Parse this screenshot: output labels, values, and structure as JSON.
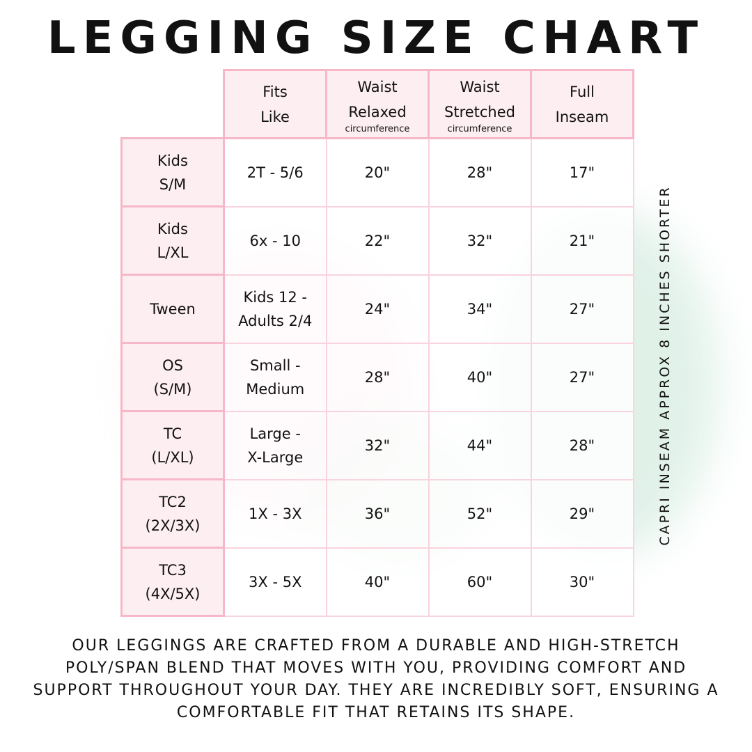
{
  "title": "LEGGING SIZE CHART",
  "headers": [
    {
      "lines": [
        "Fits",
        "Like"
      ],
      "sub": ""
    },
    {
      "lines": [
        "Waist",
        "Relaxed"
      ],
      "sub": "circumference"
    },
    {
      "lines": [
        "Waist",
        "Stretched"
      ],
      "sub": "circumference"
    },
    {
      "lines": [
        "Full",
        "Inseam"
      ],
      "sub": ""
    }
  ],
  "rows": [
    {
      "size": [
        "Kids",
        "S/M"
      ],
      "fits": [
        "2T - 5/6"
      ],
      "relaxed": "20\"",
      "stretched": "28\"",
      "inseam": "17\""
    },
    {
      "size": [
        "Kids",
        "L/XL"
      ],
      "fits": [
        "6x - 10"
      ],
      "relaxed": "22\"",
      "stretched": "32\"",
      "inseam": "21\""
    },
    {
      "size": [
        "Tween"
      ],
      "fits": [
        "Kids 12 -",
        "Adults 2/4"
      ],
      "relaxed": "24\"",
      "stretched": "34\"",
      "inseam": "27\""
    },
    {
      "size": [
        "OS",
        "(S/M)"
      ],
      "fits": [
        "Small -",
        "Medium"
      ],
      "relaxed": "28\"",
      "stretched": "40\"",
      "inseam": "27\""
    },
    {
      "size": [
        "TC",
        "(L/XL)"
      ],
      "fits": [
        "Large -",
        "X-Large"
      ],
      "relaxed": "32\"",
      "stretched": "44\"",
      "inseam": "28\""
    },
    {
      "size": [
        "TC2",
        "(2X/3X)"
      ],
      "fits": [
        "1X - 3X"
      ],
      "relaxed": "36\"",
      "stretched": "52\"",
      "inseam": "29\""
    },
    {
      "size": [
        "TC3",
        "(4X/5X)"
      ],
      "fits": [
        "3X - 5X"
      ],
      "relaxed": "40\"",
      "stretched": "60\"",
      "inseam": "30\""
    }
  ],
  "side_note": "CAPRI INSEAM APPROX 8 INCHES SHORTER",
  "footer": "Our leggings are crafted from a durable and high-stretch poly/span blend that moves with you, providing comfort and support throughout your day. They are incredibly soft, ensuring a comfortable fit that retains its shape.",
  "colors": {
    "header_bg": "#fdeef2",
    "border": "#f6b7c9",
    "accent_green": "#9fcfb8"
  }
}
